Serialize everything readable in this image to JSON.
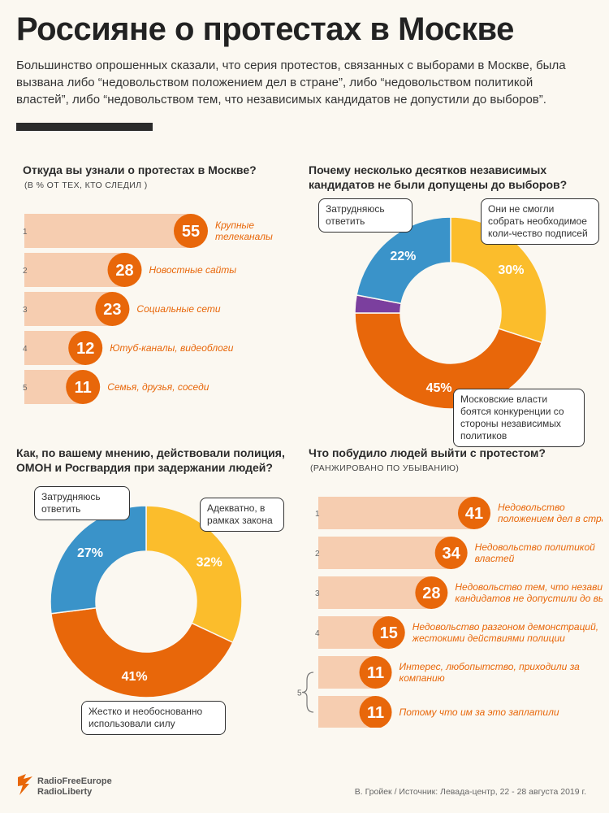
{
  "header": {
    "title": "Россияне о протестах в Москве",
    "intro": "Большинство опрошенных сказали, что серия протестов, связанных с выборами в Москве, была вызвана либо “недовольством положением дел в стране”, либо “недовольством политикой властей”, либо “недовольством тем, что независимых кандидатов не допустили до выборов”."
  },
  "colors": {
    "orange": "#e8670a",
    "peach": "#f6cdb0",
    "yellow": "#fbbd2c",
    "blue": "#3a93c9",
    "purple": "#7b3f9e",
    "dark": "#2b2b2b"
  },
  "panels": {
    "sources": {
      "question": "Откуда вы узнали о протестах в Москве?",
      "subtitle": "(В % ОТ ТЕХ, КТО СЛЕДИЛ )"
    },
    "reasons": {
      "question": "Почему несколько десятков независимых кандидатов не были допущены до выборов?"
    },
    "police": {
      "question": "Как, по вашему мнению, действовали полиция, ОМОН и Росгвардия при задержании людей?"
    },
    "motives": {
      "question": "Что побудило людей выйти с протестом?",
      "subtitle": "(РАНЖИРОВАНО ПО УБЫВАНИЮ)"
    }
  },
  "chart_data": [
    {
      "type": "bar",
      "id": "sources",
      "title": "Откуда вы узнали о протестах в Москве?",
      "subtitle": "(В % ОТ ТЕХ, КТО СЛЕДИЛ )",
      "ranks": [
        "1",
        "2",
        "3",
        "4",
        "5"
      ],
      "categories": [
        [
          "Крупные",
          "телеканалы"
        ],
        [
          "Новостные сайты"
        ],
        [
          "Социальные сети"
        ],
        [
          "Ютуб-каналы, видеоблоги"
        ],
        [
          "Семья, друзья, соседи"
        ]
      ],
      "values": [
        55,
        28,
        23,
        12,
        11
      ],
      "value_labels": [
        "55",
        "28",
        "23",
        "12",
        "11"
      ]
    },
    {
      "type": "pie",
      "id": "reasons",
      "title": "Почему несколько десятков независимых кандидатов не были допущены до выборов?",
      "slices": [
        {
          "label": "Они не смогли собрать необходимое количество подписей",
          "value": 30,
          "color": "#fbbd2c",
          "display": "30%"
        },
        {
          "label": "Московские власти боятся конкуренции со стороны независимых политиков",
          "value": 45,
          "color": "#e8670a",
          "display": "45%"
        },
        {
          "label": "",
          "value": 3,
          "color": "#7b3f9e",
          "display": ""
        },
        {
          "label": "Затрудняюсь ответить",
          "value": 22,
          "color": "#3a93c9",
          "display": "22%"
        }
      ],
      "bubbles": [
        "Затрудняюсь ответить",
        "Они не смогли собрать необходимое коли-чество подписей",
        "Московские власти боятся конкуренции со стороны независимых политиков"
      ]
    },
    {
      "type": "pie",
      "id": "police",
      "title": "Как, по вашему мнению, действовали полиция, ОМОН и Росгвардия при задержании людей?",
      "slices": [
        {
          "label": "Адекватно, в рамках закона",
          "value": 32,
          "color": "#fbbd2c",
          "display": "32%"
        },
        {
          "label": "Жестко и необоснованно использовали силу",
          "value": 41,
          "color": "#e8670a",
          "display": "41%"
        },
        {
          "label": "Затрудняюсь ответить",
          "value": 27,
          "color": "#3a93c9",
          "display": "27%"
        }
      ],
      "bubbles": [
        "Затрудняюсь ответить",
        "Адекватно, в рамках закона",
        "Жестко и необоснованно использовали силу"
      ]
    },
    {
      "type": "bar",
      "id": "motives",
      "title": "Что побудило людей выйти с протестом?",
      "subtitle": "(РАНЖИРОВАНО ПО УБЫВАНИЮ)",
      "ranks": [
        "1",
        "2",
        "3",
        "4",
        "5"
      ],
      "categories": [
        [
          "Недовольство",
          "положением дел в стране"
        ],
        [
          "Недовольство политикой",
          "властей"
        ],
        [
          "Недовольство тем, что независимых",
          "кандидатов не допустили до выборов"
        ],
        [
          "Недовольство разгоном демонстраций,",
          "жестокими действиями полиции"
        ],
        [
          "Интерес, любопытство, приходили за",
          "компанию"
        ],
        [
          "Потому что им за это заплатили"
        ]
      ],
      "values": [
        41,
        34,
        28,
        15,
        11,
        11
      ],
      "value_labels": [
        "41",
        "34",
        "28",
        "15",
        "11",
        "11"
      ]
    }
  ],
  "footer": {
    "logo_line1": "RadioFreeEurope",
    "logo_line2": "RadioLiberty",
    "source": "В. Гройек / Источник: Левада-центр, 22 - 28 августа 2019 г."
  }
}
